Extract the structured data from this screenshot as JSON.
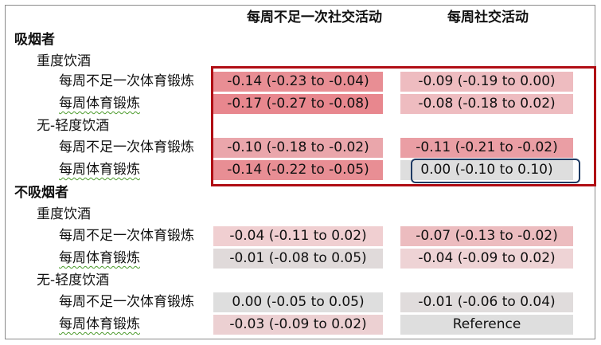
{
  "columns": {
    "col_a": "每周不足一次社交活动",
    "col_b": "每周社交活动"
  },
  "groups": {
    "smokers": {
      "label": "吸烟者",
      "heavy": {
        "label": "重度饮酒",
        "low_pa": {
          "label": "每周不足一次体育锻炼",
          "a": "-0.14 (-0.23 to -0.04)",
          "b": "-0.09 (-0.19 to 0.00)"
        },
        "pa": {
          "label": "每周体育锻炼",
          "a": "-0.17 (-0.27 to -0.08)",
          "b": "-0.08 (-0.18 to 0.02)"
        }
      },
      "light": {
        "label": "无-轻度饮酒",
        "low_pa": {
          "label": "每周不足一次体育锻炼",
          "a": "-0.10 (-0.18 to -0.02)",
          "b": "-0.11 (-0.21 to -0.02)"
        },
        "pa": {
          "label": "每周体育锻炼",
          "a": "-0.14 (-0.22 to -0.05)",
          "b": "0.00 (-0.10 to 0.10)"
        }
      }
    },
    "nonsmokers": {
      "label": "不吸烟者",
      "heavy": {
        "label": "重度饮酒",
        "low_pa": {
          "label": "每周不足一次体育锻炼",
          "a": "-0.04 (-0.11 to 0.02)",
          "b": "-0.07 (-0.13 to -0.02)"
        },
        "pa": {
          "label": "每周体育锻炼",
          "a": "-0.01 (-0.08 to 0.05)",
          "b": "-0.04 (-0.09 to 0.02)"
        }
      },
      "light": {
        "label": "无-轻度饮酒",
        "low_pa": {
          "label": "每周不足一次体育锻炼",
          "a": "0.00 (-0.05 to 0.05)",
          "b": "-0.01 (-0.06 to 0.04)"
        },
        "pa": {
          "label": "每周体育锻炼",
          "a": "-0.03 (-0.09 to 0.02)",
          "b": "Reference"
        }
      }
    }
  },
  "colors": {
    "highlight_box_red": "#b00d14",
    "highlight_box_blue": "#1f3b63",
    "strong_negative": "#e88e94",
    "moderate_negative": "#eebcc0",
    "light_negative": "#f0cfd1",
    "neutral": "#dedede"
  }
}
